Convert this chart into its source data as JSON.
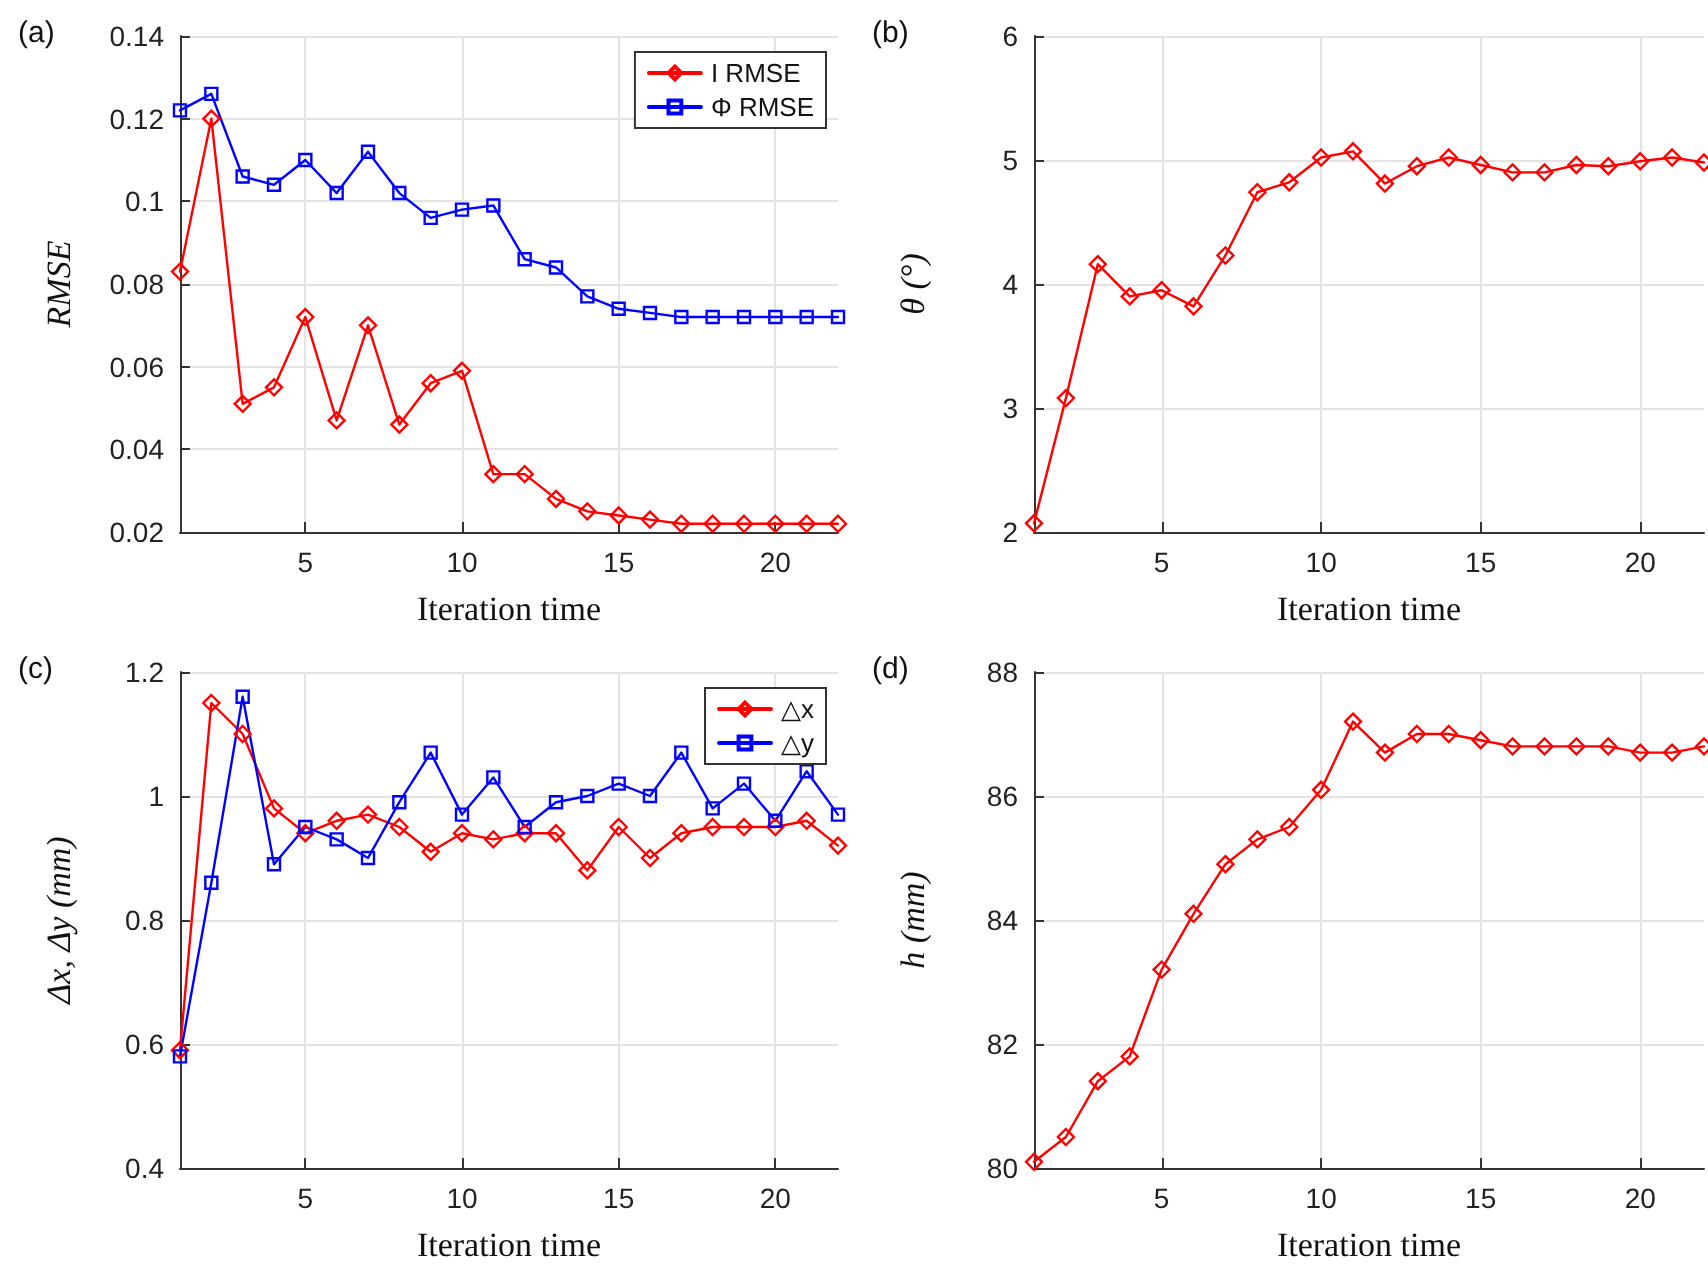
{
  "chart_data": [
    {
      "type": "line",
      "title": "(a)",
      "xlabel": "Iteration time",
      "ylabel": "RMSE",
      "x": [
        1,
        2,
        3,
        4,
        5,
        6,
        7,
        8,
        9,
        10,
        11,
        12,
        13,
        14,
        15,
        16,
        17,
        18,
        19,
        20,
        21,
        22
      ],
      "xlim": [
        1,
        22
      ],
      "xticks": [
        5,
        10,
        15,
        20
      ],
      "ylim": [
        0.02,
        0.14
      ],
      "yticks": [
        0.02,
        0.04,
        0.06,
        0.08,
        0.1,
        0.12,
        0.14
      ],
      "grid": true,
      "legend": "top right",
      "line_style": "solid",
      "series": [
        {
          "name": "I RMSE",
          "color": "#ff0000",
          "marker": "diamond",
          "values": [
            0.083,
            0.12,
            0.051,
            0.055,
            0.072,
            0.047,
            0.07,
            0.046,
            0.056,
            0.059,
            0.034,
            0.034,
            0.028,
            0.025,
            0.024,
            0.023,
            0.022,
            0.022,
            0.022,
            0.022,
            0.022,
            0.022
          ]
        },
        {
          "name": "Φ RMSE",
          "color": "#0000ff",
          "marker": "square",
          "values": [
            0.122,
            0.126,
            0.106,
            0.104,
            0.11,
            0.102,
            0.112,
            0.102,
            0.096,
            0.098,
            0.099,
            0.086,
            0.084,
            0.077,
            0.074,
            0.073,
            0.072,
            0.072,
            0.072,
            0.072,
            0.072,
            0.072
          ]
        }
      ]
    },
    {
      "type": "line",
      "title": "(b)",
      "xlabel": "Iteration time",
      "ylabel": "θ (°)",
      "x": [
        1,
        2,
        3,
        4,
        5,
        6,
        7,
        8,
        9,
        10,
        11,
        12,
        13,
        14,
        15,
        16,
        17,
        18,
        19,
        20,
        21,
        22
      ],
      "xlim": [
        1,
        22
      ],
      "xticks": [
        5,
        10,
        15,
        20
      ],
      "ylim": [
        2,
        6
      ],
      "yticks": [
        2,
        3,
        4,
        5,
        6
      ],
      "grid": true,
      "line_style": "solid",
      "series": [
        {
          "color": "#ff0000",
          "marker": "diamond",
          "values": [
            2.07,
            3.08,
            4.16,
            3.9,
            3.95,
            3.82,
            4.23,
            4.74,
            4.82,
            5.02,
            5.07,
            4.81,
            4.95,
            5.02,
            4.96,
            4.9,
            4.9,
            4.96,
            4.95,
            4.99,
            5.02,
            4.98
          ]
        }
      ]
    },
    {
      "type": "line",
      "title": "(c)",
      "xlabel": "Iteration time",
      "ylabel": "Δx, Δy (mm)",
      "x": [
        1,
        2,
        3,
        4,
        5,
        6,
        7,
        8,
        9,
        10,
        11,
        12,
        13,
        14,
        15,
        16,
        17,
        18,
        19,
        20,
        21,
        22
      ],
      "xlim": [
        1,
        22
      ],
      "xticks": [
        5,
        10,
        15,
        20
      ],
      "ylim": [
        0.4,
        1.2
      ],
      "yticks": [
        0.4,
        0.6,
        0.8,
        1,
        1.2
      ],
      "grid": true,
      "legend": "top right",
      "line_style": "solid",
      "series": [
        {
          "name": "△x",
          "color": "#ff0000",
          "marker": "diamond",
          "values": [
            0.59,
            1.15,
            1.1,
            0.98,
            0.94,
            0.96,
            0.97,
            0.95,
            0.91,
            0.94,
            0.93,
            0.94,
            0.94,
            0.88,
            0.95,
            0.9,
            0.94,
            0.95,
            0.95,
            0.95,
            0.96,
            0.92
          ]
        },
        {
          "name": "△y",
          "color": "#0000ff",
          "marker": "square",
          "values": [
            0.58,
            0.86,
            1.16,
            0.89,
            0.95,
            0.93,
            0.9,
            0.99,
            1.07,
            0.97,
            1.03,
            0.95,
            0.99,
            1.0,
            1.02,
            1.0,
            1.07,
            0.98,
            1.02,
            0.96,
            1.04,
            0.97
          ]
        }
      ]
    },
    {
      "type": "line",
      "title": "(d)",
      "xlabel": "Iteration time",
      "ylabel": "h (mm)",
      "x": [
        1,
        2,
        3,
        4,
        5,
        6,
        7,
        8,
        9,
        10,
        11,
        12,
        13,
        14,
        15,
        16,
        17,
        18,
        19,
        20,
        21,
        22
      ],
      "xlim": [
        1,
        22
      ],
      "xticks": [
        5,
        10,
        15,
        20
      ],
      "ylim": [
        80,
        88
      ],
      "yticks": [
        80,
        82,
        84,
        86,
        88
      ],
      "grid": true,
      "line_style": "solid",
      "series": [
        {
          "color": "#ff0000",
          "marker": "diamond",
          "values": [
            80.1,
            80.5,
            81.4,
            81.8,
            83.2,
            84.1,
            84.9,
            85.3,
            85.5,
            86.1,
            87.2,
            86.7,
            87.0,
            87.0,
            86.9,
            86.8,
            86.8,
            86.8,
            86.8,
            86.7,
            86.7,
            86.8
          ]
        }
      ]
    }
  ]
}
